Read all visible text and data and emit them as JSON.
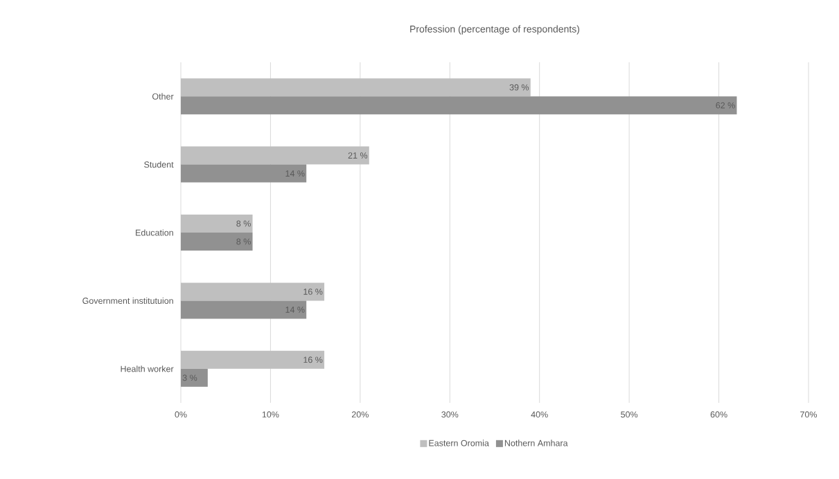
{
  "chart_data": {
    "type": "bar",
    "orientation": "horizontal",
    "title": "Profession (percentage of respondents)",
    "categories": [
      "Other",
      "Student",
      "Education",
      "Government institutuion",
      "Health worker"
    ],
    "series": [
      {
        "name": "Eastern Oromia",
        "color": "#bfbfbf",
        "values": [
          39,
          21,
          8,
          16,
          16
        ],
        "value_labels": [
          "39 %",
          "21 %",
          "8 %",
          "16 %",
          "16 %"
        ]
      },
      {
        "name": "Nothern Amhara",
        "color": "#919191",
        "values": [
          62,
          14,
          8,
          14,
          3
        ],
        "value_labels": [
          "62 %",
          "14 %",
          "8 %",
          "14 %",
          "3 %"
        ]
      }
    ],
    "xlim": [
      0,
      70
    ],
    "xticks": [
      {
        "value": 0,
        "label": "0%"
      },
      {
        "value": 10,
        "label": "10%"
      },
      {
        "value": 20,
        "label": "20%"
      },
      {
        "value": 30,
        "label": "30%"
      },
      {
        "value": 40,
        "label": "40%"
      },
      {
        "value": 50,
        "label": "50%"
      },
      {
        "value": 60,
        "label": "60%"
      },
      {
        "value": 70,
        "label": "70%"
      }
    ],
    "grid": "x",
    "legend": "bottom"
  }
}
